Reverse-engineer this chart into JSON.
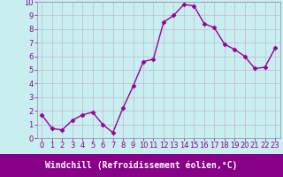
{
  "x": [
    0,
    1,
    2,
    3,
    4,
    5,
    6,
    7,
    8,
    9,
    10,
    11,
    12,
    13,
    14,
    15,
    16,
    17,
    18,
    19,
    20,
    21,
    22,
    23
  ],
  "y": [
    1.7,
    0.7,
    0.6,
    1.3,
    1.7,
    1.9,
    1.0,
    0.4,
    2.2,
    3.8,
    5.6,
    5.8,
    8.5,
    9.0,
    9.8,
    9.7,
    8.4,
    8.1,
    6.9,
    6.5,
    6.0,
    5.1,
    5.2,
    6.6
  ],
  "line_color": "#990099",
  "marker": "D",
  "marker_size": 2.5,
  "line_width": 1.0,
  "xlabel": "Windchill (Refroidissement éolien,°C)",
  "xlim": [
    -0.5,
    23.5
  ],
  "ylim": [
    0,
    10
  ],
  "yticks": [
    0,
    1,
    2,
    3,
    4,
    5,
    6,
    7,
    8,
    9,
    10
  ],
  "xticks": [
    0,
    1,
    2,
    3,
    4,
    5,
    6,
    7,
    8,
    9,
    10,
    11,
    12,
    13,
    14,
    15,
    16,
    17,
    18,
    19,
    20,
    21,
    22,
    23
  ],
  "bg_color": "#c8eef0",
  "grid_color": "#c0b8d0",
  "tick_fontsize": 6,
  "tick_color": "#880088",
  "label_bg_color": "#880088",
  "label_text_color": "#ffffff",
  "label_fontsize": 7,
  "border_color": "#9988aa"
}
